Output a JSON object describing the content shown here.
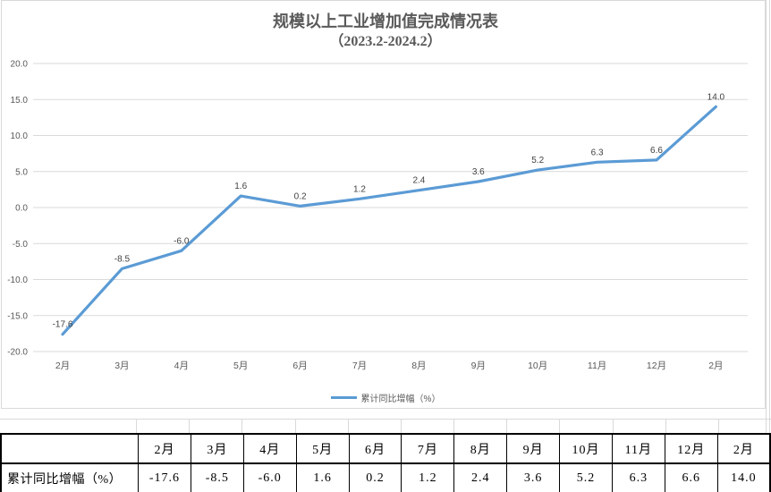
{
  "title": {
    "line1": "规模以上工业增加值完成情况表",
    "line2": "（2023.2-2024.2）"
  },
  "legend": {
    "label": "累计同比增幅（%）"
  },
  "chart_data": {
    "type": "line",
    "title": "规模以上工业增加值完成情况表（2023.2-2024.2）",
    "categories": [
      "2月",
      "3月",
      "4月",
      "5月",
      "6月",
      "7月",
      "8月",
      "9月",
      "10月",
      "11月",
      "12月",
      "2月"
    ],
    "series": [
      {
        "name": "累计同比增幅（%）",
        "values": [
          -17.6,
          -8.5,
          -6.0,
          1.6,
          0.2,
          1.2,
          2.4,
          3.6,
          5.2,
          6.3,
          6.6,
          14.0
        ]
      }
    ],
    "value_labels": [
      "-17.6",
      "-8.5",
      "-6.0",
      "1.6",
      "0.2",
      "1.2",
      "2.4",
      "3.6",
      "5.2",
      "6.3",
      "6.6",
      "14.0"
    ],
    "xlabel": "",
    "ylabel": "",
    "ylim": [
      -20,
      20
    ],
    "ytick_step": 5,
    "ytick_labels": [
      "20.0",
      "15.0",
      "10.0",
      "5.0",
      "0.0",
      "-5.0",
      "-10.0",
      "-15.0",
      "-20.0"
    ],
    "grid": true,
    "legend_position": "bottom",
    "line_color": "#5B9BD5",
    "gridline_color": "#D9D9D9",
    "axis_text_color": "#595959",
    "label_text_color": "#404040"
  },
  "table": {
    "corner": "",
    "headers": [
      "2月",
      "3月",
      "4月",
      "5月",
      "6月",
      "7月",
      "8月",
      "9月",
      "10月",
      "11月",
      "12月",
      "2月"
    ],
    "row_label": "累计同比增幅（%）",
    "values": [
      "-17.6",
      "-8.5",
      "-6.0",
      "1.6",
      "0.2",
      "1.2",
      "2.4",
      "3.6",
      "5.2",
      "6.3",
      "6.6",
      "14.0"
    ]
  }
}
